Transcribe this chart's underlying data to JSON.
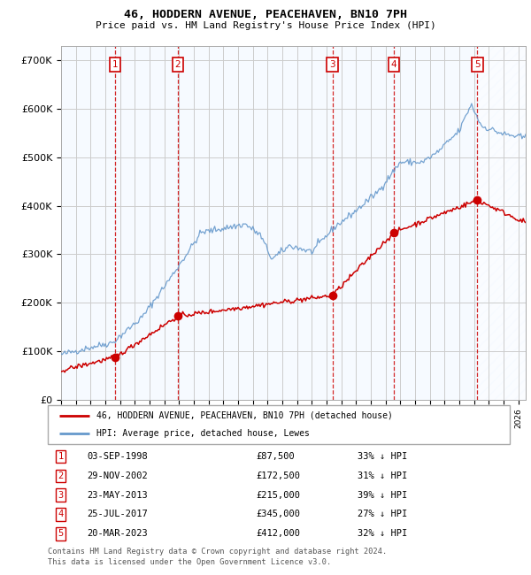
{
  "title": "46, HODDERN AVENUE, PEACEHAVEN, BN10 7PH",
  "subtitle": "Price paid vs. HM Land Registry's House Price Index (HPI)",
  "ylim": [
    0,
    730000
  ],
  "xlim_start": 1995.0,
  "xlim_end": 2026.5,
  "transactions": [
    {
      "num": 1,
      "date": "03-SEP-1998",
      "date_x": 1998.67,
      "price": 87500,
      "pct": "33% ↓ HPI"
    },
    {
      "num": 2,
      "date": "29-NOV-2002",
      "date_x": 2002.91,
      "price": 172500,
      "pct": "31% ↓ HPI"
    },
    {
      "num": 3,
      "date": "23-MAY-2013",
      "date_x": 2013.39,
      "price": 215000,
      "pct": "39% ↓ HPI"
    },
    {
      "num": 4,
      "date": "25-JUL-2017",
      "date_x": 2017.56,
      "price": 345000,
      "pct": "27% ↓ HPI"
    },
    {
      "num": 5,
      "date": "20-MAR-2023",
      "date_x": 2023.22,
      "price": 412000,
      "pct": "32% ↓ HPI"
    }
  ],
  "legend_line1": "46, HODDERN AVENUE, PEACEHAVEN, BN10 7PH (detached house)",
  "legend_line2": "HPI: Average price, detached house, Lewes",
  "footer1": "Contains HM Land Registry data © Crown copyright and database right 2024.",
  "footer2": "This data is licensed under the Open Government Licence v3.0.",
  "red_color": "#cc0000",
  "blue_color": "#6699cc",
  "bg_shade_color": "#ddeeff",
  "grid_color": "#cccccc",
  "hpi_anchors_x": [
    1995.0,
    1997.0,
    1998.5,
    2000.5,
    2002.5,
    2004.5,
    2007.5,
    2008.5,
    2009.3,
    2010.5,
    2012.0,
    2013.5,
    2015.0,
    2016.5,
    2018.0,
    2019.5,
    2020.5,
    2022.0,
    2022.8,
    2023.5,
    2025.0,
    2026.5
  ],
  "hpi_anchors_y": [
    93000,
    108000,
    118000,
    170000,
    255000,
    345000,
    362000,
    340000,
    290000,
    318000,
    305000,
    355000,
    390000,
    430000,
    490000,
    490000,
    510000,
    555000,
    610000,
    565000,
    548000,
    540000
  ],
  "prop_anchors_x": [
    1995.0,
    1998.67,
    2002.91,
    2013.39,
    2017.56,
    2023.22,
    2026.5
  ],
  "prop_anchors_y": [
    60000,
    87500,
    172500,
    215000,
    345000,
    412000,
    365000
  ]
}
